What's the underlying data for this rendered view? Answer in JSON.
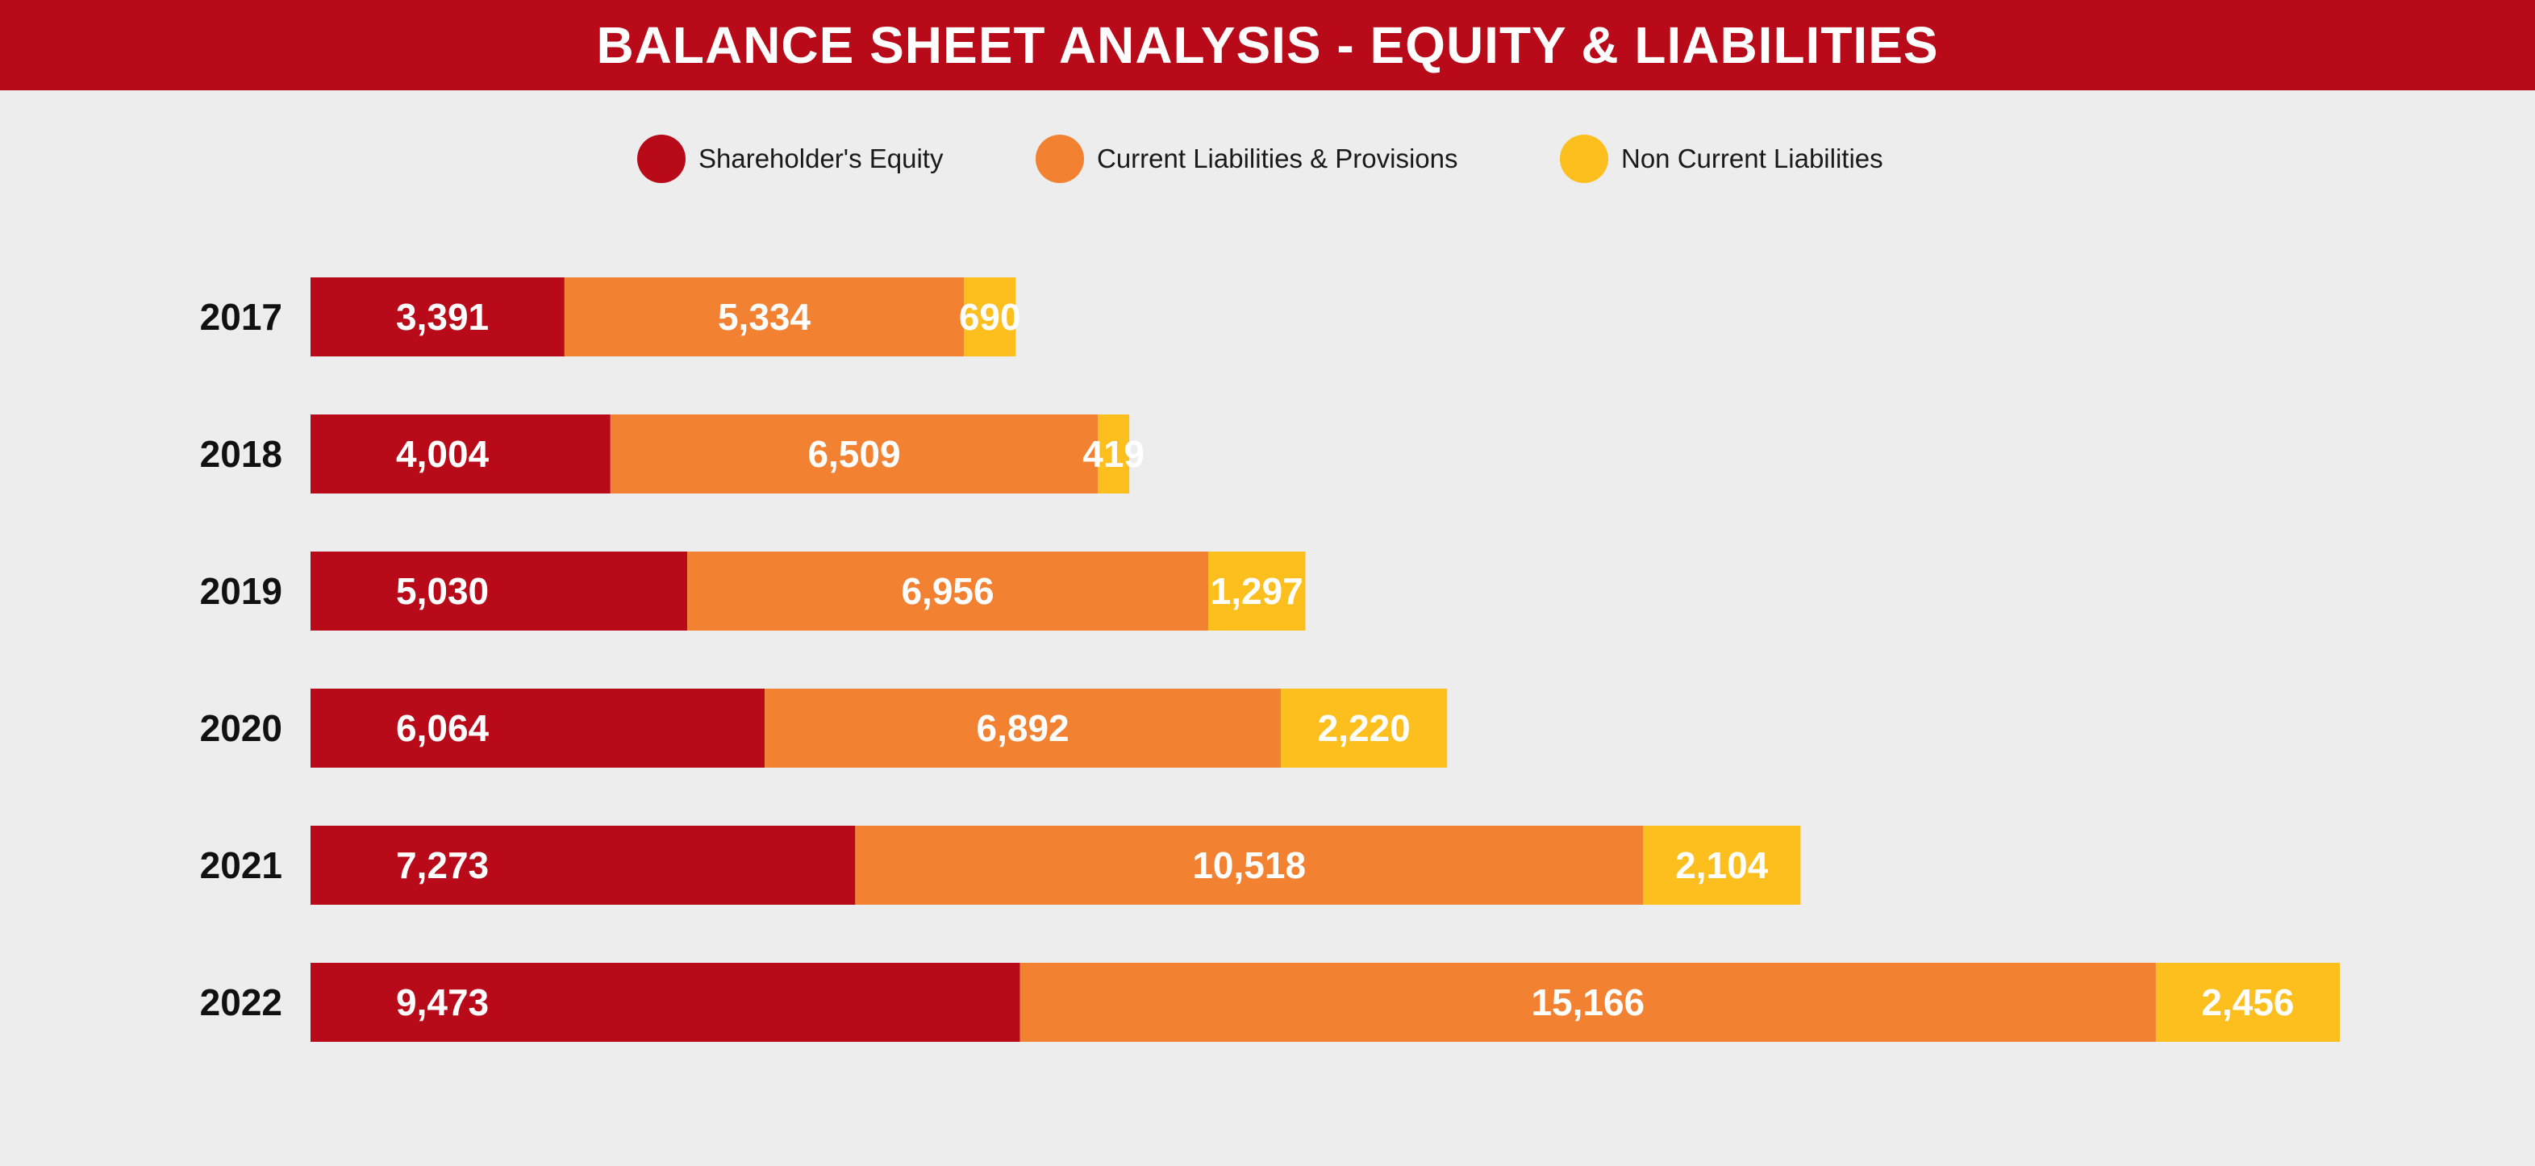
{
  "chart_data": {
    "type": "bar",
    "orientation": "horizontal",
    "stacked": true,
    "title": "BALANCE SHEET ANALYSIS - EQUITY & LIABILITIES",
    "categories": [
      "2017",
      "2018",
      "2019",
      "2020",
      "2021",
      "2022"
    ],
    "series": [
      {
        "name": "Shareholder's Equity",
        "color": "#b80a18",
        "values": [
          3391,
          4004,
          5030,
          6064,
          7273,
          9473
        ],
        "labels": [
          "3,391",
          "4,004",
          "5,030",
          "6,064",
          "7,273",
          "9,473"
        ]
      },
      {
        "name": "Current Liabilities & Provisions",
        "color": "#f28232",
        "values": [
          5334,
          6509,
          6956,
          6892,
          10518,
          15166
        ],
        "labels": [
          "5,334",
          "6,509",
          "6,956",
          "6,892",
          "10,518",
          "15,166"
        ]
      },
      {
        "name": "Non Current Liabilities",
        "color": "#fdbf1d",
        "values": [
          690,
          419,
          1297,
          2220,
          2104,
          2456
        ],
        "labels": [
          "690",
          "419",
          "1,297",
          "2,220",
          "2,104",
          "2,456"
        ]
      }
    ],
    "legend_position": "top-center",
    "grid": false,
    "xaxis_visible": false
  },
  "colors": {
    "title_bar": "#b80a18",
    "background": "#ededed"
  }
}
